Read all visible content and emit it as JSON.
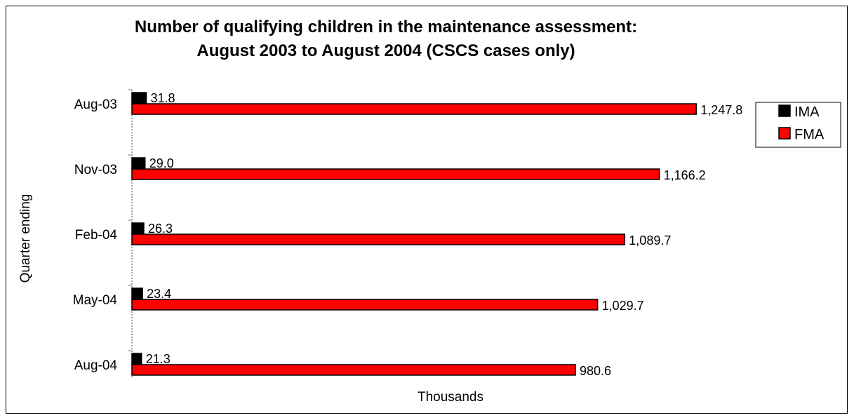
{
  "chart_data": {
    "type": "bar",
    "orientation": "horizontal",
    "title": [
      "Number of qualifying children in the maintenance assessment:",
      "August 2003 to August 2004 (CSCS cases only)"
    ],
    "xlabel": "Thousands",
    "ylabel": "Quarter ending",
    "categories": [
      "Aug-03",
      "Nov-03",
      "Feb-04",
      "May-04",
      "Aug-04"
    ],
    "series": [
      {
        "name": "IMA",
        "color": "#000000",
        "values": [
          31.8,
          29.0,
          26.3,
          23.4,
          21.3
        ],
        "labels": [
          "31.8",
          "29.0",
          "26.3",
          "23.4",
          "21.3"
        ]
      },
      {
        "name": "FMA",
        "color": "#ff0000",
        "values": [
          1247.8,
          1166.2,
          1089.7,
          1029.7,
          980.6
        ],
        "labels": [
          "1,247.8",
          "1,166.2",
          "1,089.7",
          "1,029.7",
          "980.6"
        ]
      }
    ],
    "xlim": [
      0,
      1330
    ],
    "grid": false,
    "legend_position": "right"
  }
}
